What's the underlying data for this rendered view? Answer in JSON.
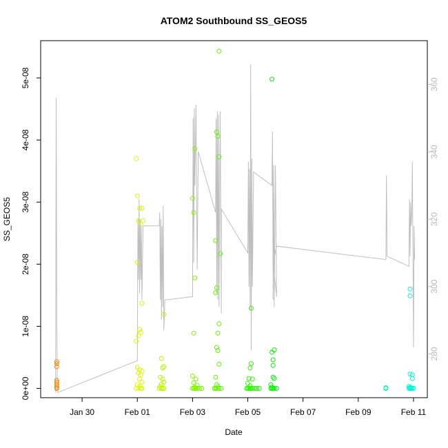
{
  "chart_data": {
    "type": "scatter",
    "title": "ATOM2 Southbound SS_GEOS5",
    "xlabel": "Date",
    "ylabel": "SS_GEOS5",
    "x_unit": "day",
    "xlim": [
      "2016-01-28T12:00",
      "2016-02-11T12:00"
    ],
    "ylim": [
      -1.5e-09,
      5.6e-08
    ],
    "y_ticks": [
      {
        "value": 0,
        "label": "0e+00"
      },
      {
        "value": 1e-08,
        "label": "1e-08"
      },
      {
        "value": 2e-08,
        "label": "2e-08"
      },
      {
        "value": 3e-08,
        "label": "3e-08"
      },
      {
        "value": 4e-08,
        "label": "4e-08"
      },
      {
        "value": 5e-08,
        "label": "5e-08"
      }
    ],
    "x_ticks": [
      {
        "value": "2016-01-30",
        "label": "Jan 30"
      },
      {
        "value": "2016-02-01",
        "label": "Feb 01"
      },
      {
        "value": "2016-02-03",
        "label": "Feb 03"
      },
      {
        "value": "2016-02-05",
        "label": "Feb 05"
      },
      {
        "value": "2016-02-07",
        "label": "Feb 07"
      },
      {
        "value": "2016-02-09",
        "label": "Feb 09"
      },
      {
        "value": "2016-02-11",
        "label": "Feb 11"
      }
    ],
    "y2lim": [
      267,
      373
    ],
    "y2_ticks": [
      {
        "value": 280,
        "label": "280"
      },
      {
        "value": 300,
        "label": "300"
      },
      {
        "value": 320,
        "label": "320"
      },
      {
        "value": 340,
        "label": "340"
      },
      {
        "value": 360,
        "label": "360"
      }
    ],
    "grid": false,
    "line_color": "#bebebe",
    "series": [
      {
        "marker": "circle-open",
        "points": [
          [
            "2016-01-29T02:00",
            4.3e-09
          ],
          [
            "2016-01-29T02:00",
            4e-09
          ],
          [
            "2016-01-29T02:00",
            3.5e-09
          ],
          [
            "2016-01-29T02:00",
            1.3e-09
          ],
          [
            "2016-01-29T02:00",
            1e-09
          ],
          [
            "2016-01-29T02:00",
            7e-10
          ],
          [
            "2016-01-29T02:00",
            4e-10
          ],
          [
            "2016-01-29T02:00",
            1e-10
          ],
          [
            "2016-01-29T02:00",
            0.0
          ]
        ]
      },
      {
        "marker": "circle-open",
        "points": [
          [
            "2016-01-31T23:00",
            3.7e-08
          ],
          [
            "2016-02-01T00:00",
            3.1e-08
          ],
          [
            "2016-02-01T02:00",
            2.9e-08
          ],
          [
            "2016-02-01T04:00",
            2.9e-08
          ],
          [
            "2016-02-01T01:00",
            2.7e-08
          ],
          [
            "2016-02-01T03:00",
            2.65e-08
          ],
          [
            "2016-02-01T05:00",
            2.7e-08
          ],
          [
            "2016-02-01T00:00",
            2.03e-08
          ],
          [
            "2016-02-01T04:00",
            1.37e-08
          ],
          [
            "2016-02-01T02:00",
            9.5e-09
          ],
          [
            "2016-02-01T03:00",
            9e-09
          ],
          [
            "2016-02-01T01:00",
            8.5e-09
          ],
          [
            "2016-01-31T23:00",
            7.6e-09
          ],
          [
            "2016-02-01T00:00",
            3.4e-09
          ],
          [
            "2016-02-01T02:00",
            3e-09
          ],
          [
            "2016-02-01T04:00",
            2.8e-09
          ],
          [
            "2016-02-01T01:00",
            2.5e-09
          ],
          [
            "2016-02-01T03:00",
            2.2e-09
          ],
          [
            "2016-02-01T02:00",
            1.5e-09
          ],
          [
            "2016-02-01T04:00",
            1e-09
          ],
          [
            "2016-02-01T00:00",
            6e-10
          ],
          [
            "2016-02-01T02:00",
            3e-10
          ],
          [
            "2016-02-01T04:00",
            0.0
          ],
          [
            "2016-02-01T01:00",
            0.0
          ],
          [
            "2016-02-01T03:00",
            0.0
          ],
          [
            "2016-01-31T23:00",
            0.0
          ]
        ]
      },
      {
        "marker": "circle-open",
        "points": [
          [
            "2016-02-01T21:00",
            4.8e-09
          ],
          [
            "2016-02-01T23:00",
            1.19e-08
          ],
          [
            "2016-02-01T23:00",
            3.5e-09
          ],
          [
            "2016-02-01T22:00",
            3.3e-09
          ],
          [
            "2016-02-01T20:00",
            1.8e-09
          ],
          [
            "2016-02-01T22:00",
            1.5e-09
          ],
          [
            "2016-02-01T23:00",
            1e-09
          ],
          [
            "2016-02-01T21:00",
            7e-10
          ],
          [
            "2016-02-01T20:00",
            3e-10
          ],
          [
            "2016-02-01T22:00",
            0.0
          ],
          [
            "2016-02-01T23:00",
            0.0
          ],
          [
            "2016-02-01T21:00",
            0.0
          ],
          [
            "2016-02-01T19:00",
            0.0
          ]
        ]
      },
      {
        "marker": "circle-open",
        "points": [
          [
            "2016-02-03T00:00",
            3.06e-08
          ],
          [
            "2016-02-03T02:00",
            3.86e-08
          ],
          [
            "2016-02-03T01:00",
            2.83e-08
          ],
          [
            "2016-02-03T02:00",
            1.78e-08
          ],
          [
            "2016-02-03T01:00",
            8.9e-09
          ],
          [
            "2016-02-03T00:00",
            2e-09
          ],
          [
            "2016-02-03T03:00",
            1.5e-09
          ],
          [
            "2016-02-03T01:00",
            9e-10
          ],
          [
            "2016-02-03T04:00",
            5e-10
          ],
          [
            "2016-02-03T02:00",
            2e-10
          ],
          [
            "2016-02-03T00:00",
            0.0
          ],
          [
            "2016-02-03T01:00",
            0.0
          ],
          [
            "2016-02-03T02:00",
            0.0
          ],
          [
            "2016-02-03T03:00",
            0.0
          ],
          [
            "2016-02-03T04:00",
            0.0
          ],
          [
            "2016-02-03T06:00",
            0.0
          ],
          [
            "2016-02-03T08:00",
            0.0
          ]
        ]
      },
      {
        "marker": "circle-open",
        "points": [
          [
            "2016-02-03T21:00",
            4.13e-08
          ],
          [
            "2016-02-03T22:00",
            4.06e-08
          ],
          [
            "2016-02-03T23:00",
            3.73e-08
          ],
          [
            "2016-02-03T20:00",
            2.38e-08
          ],
          [
            "2016-02-04T00:00",
            2.17e-08
          ],
          [
            "2016-02-03T21:00",
            1.62e-08
          ],
          [
            "2016-02-03T20:00",
            1.54e-08
          ],
          [
            "2016-02-03T23:00",
            1.04e-08
          ],
          [
            "2016-02-03T22:00",
            8.9e-09
          ],
          [
            "2016-02-03T21:00",
            6.6e-09
          ],
          [
            "2016-02-03T22:00",
            6.1e-09
          ],
          [
            "2016-02-03T23:00",
            3.9e-09
          ],
          [
            "2016-02-03T20:00",
            1.8e-09
          ],
          [
            "2016-02-03T21:00",
            6e-10
          ],
          [
            "2016-02-03T22:00",
            3e-10
          ],
          [
            "2016-02-03T23:00",
            0.0
          ],
          [
            "2016-02-04T01:00",
            0.0
          ],
          [
            "2016-02-03T19:00",
            0.0
          ],
          [
            "2016-02-03T20:00",
            0.0
          ],
          [
            "2016-02-03T21:00",
            0.0
          ]
        ]
      },
      {
        "marker": "circle-open",
        "points": [
          [
            "2016-02-03T23:00",
            5.43e-08
          ]
        ]
      },
      {
        "marker": "circle-open",
        "points": [
          [
            "2016-02-05T03:00",
            1.29e-08
          ],
          [
            "2016-02-05T03:00",
            4e-09
          ],
          [
            "2016-02-05T02:00",
            3.3e-09
          ],
          [
            "2016-02-05T01:00",
            1.6e-09
          ],
          [
            "2016-02-05T04:00",
            1.5e-09
          ],
          [
            "2016-02-05T00:00",
            8e-10
          ],
          [
            "2016-02-05T02:00",
            4e-10
          ],
          [
            "2016-02-05T00:00",
            0.0
          ],
          [
            "2016-02-05T01:00",
            0.0
          ],
          [
            "2016-02-05T02:00",
            0.0
          ],
          [
            "2016-02-05T03:00",
            0.0
          ],
          [
            "2016-02-05T04:00",
            0.0
          ],
          [
            "2016-02-05T06:00",
            0.0
          ],
          [
            "2016-02-05T08:00",
            0.0
          ],
          [
            "2016-02-05T10:00",
            0.0
          ],
          [
            "2016-02-04T23:00",
            0.0
          ]
        ]
      },
      {
        "marker": "circle-open",
        "points": [
          [
            "2016-02-05T21:00",
            4.98e-08
          ],
          [
            "2016-02-05T23:00",
            6.2e-09
          ],
          [
            "2016-02-05T21:00",
            5.8e-09
          ],
          [
            "2016-02-05T22:00",
            4.6e-09
          ],
          [
            "2016-02-05T22:00",
            3.7e-09
          ],
          [
            "2016-02-05T22:00",
            1.8e-09
          ],
          [
            "2016-02-05T23:00",
            1.6e-09
          ],
          [
            "2016-02-05T20:00",
            6e-10
          ],
          [
            "2016-02-05T21:00",
            2e-10
          ],
          [
            "2016-02-05T20:00",
            0.0
          ],
          [
            "2016-02-05T21:00",
            0.0
          ],
          [
            "2016-02-05T22:00",
            0.0
          ],
          [
            "2016-02-05T23:00",
            0.0
          ],
          [
            "2016-02-06T01:00",
            0.0
          ]
        ]
      },
      {
        "marker": "circle-open",
        "points": [
          [
            "2016-02-10T00:00",
            0.0
          ],
          [
            "2016-02-10T00:00",
            1e-10
          ]
        ]
      },
      {
        "marker": "circle-open",
        "points": [
          [
            "2016-02-10T21:00",
            1.6e-08
          ],
          [
            "2016-02-10T21:00",
            1.49e-08
          ],
          [
            "2016-02-10T21:00",
            2.3e-09
          ],
          [
            "2016-02-10T23:00",
            2.2e-09
          ],
          [
            "2016-02-10T23:00",
            1.6e-09
          ],
          [
            "2016-02-10T20:00",
            3e-10
          ],
          [
            "2016-02-10T21:00",
            2e-10
          ],
          [
            "2016-02-10T22:00",
            1e-10
          ],
          [
            "2016-02-10T22:00",
            0.0
          ],
          [
            "2016-02-10T23:00",
            0.0
          ],
          [
            "2016-02-11T00:00",
            0.0
          ],
          [
            "2016-02-10T20:00",
            0.0
          ],
          [
            "2016-02-10T21:00",
            0.0
          ]
        ]
      }
    ],
    "line_series": {
      "axis": "right",
      "points": [
        [
          "2016-01-29T01:00",
          268.5
        ],
        [
          "2016-01-29T01:30",
          356.0
        ],
        [
          "2016-01-29T02:00",
          290.0
        ],
        [
          "2016-01-29T02:30",
          268.5
        ],
        [
          "2016-02-01T00:00",
          278.0
        ],
        [
          "2016-02-01T00:30",
          320.0
        ],
        [
          "2016-02-01T01:00",
          302.0
        ],
        [
          "2016-02-01T01:30",
          326.0
        ],
        [
          "2016-02-01T02:00",
          298.0
        ],
        [
          "2016-02-01T02:30",
          320.0
        ],
        [
          "2016-02-01T03:00",
          302.0
        ],
        [
          "2016-02-01T03:30",
          318.0
        ],
        [
          "2016-02-01T04:00",
          296.0
        ],
        [
          "2016-02-01T05:00",
          318.0
        ],
        [
          "2016-02-01T19:00",
          318.0
        ],
        [
          "2016-02-01T19:30",
          322.0
        ],
        [
          "2016-02-01T20:00",
          296.0
        ],
        [
          "2016-02-01T20:30",
          320.0
        ],
        [
          "2016-02-01T21:00",
          290.0
        ],
        [
          "2016-02-01T21:30",
          318.0
        ],
        [
          "2016-02-01T22:00",
          294.0
        ],
        [
          "2016-02-01T22:30",
          324.0
        ],
        [
          "2016-02-01T23:00",
          287.0
        ],
        [
          "2016-02-02T00:00",
          296.0
        ],
        [
          "2016-02-03T00:00",
          297.0
        ],
        [
          "2016-02-03T00:30",
          350.0
        ],
        [
          "2016-02-03T01:00",
          307.0
        ],
        [
          "2016-02-03T01:30",
          353.0
        ],
        [
          "2016-02-03T02:00",
          330.0
        ],
        [
          "2016-02-03T03:00",
          354.0
        ],
        [
          "2016-02-03T04:00",
          305.0
        ],
        [
          "2016-02-03T05:00",
          340.0
        ],
        [
          "2016-02-03T05:00",
          340.0
        ],
        [
          "2016-02-03T20:00",
          322.0
        ],
        [
          "2016-02-03T20:30",
          350.0
        ],
        [
          "2016-02-03T21:00",
          298.0
        ],
        [
          "2016-02-03T21:30",
          352.0
        ],
        [
          "2016-02-03T22:00",
          296.0
        ],
        [
          "2016-02-03T22:30",
          351.0
        ],
        [
          "2016-02-03T23:00",
          294.0
        ],
        [
          "2016-02-04T00:00",
          352.0
        ],
        [
          "2016-02-04T01:00",
          292.0
        ],
        [
          "2016-02-04T01:00",
          323.0
        ],
        [
          "2016-02-05T00:00",
          310.0
        ],
        [
          "2016-02-05T00:30",
          337.0
        ],
        [
          "2016-02-05T01:00",
          300.0
        ],
        [
          "2016-02-05T01:30",
          335.0
        ],
        [
          "2016-02-05T02:00",
          293.0
        ],
        [
          "2016-02-05T02:30",
          366.0
        ],
        [
          "2016-02-05T03:00",
          281.0
        ],
        [
          "2016-02-05T03:30",
          338.0
        ],
        [
          "2016-02-05T04:00",
          300.0
        ],
        [
          "2016-02-05T05:00",
          334.0
        ],
        [
          "2016-02-05T05:00",
          334.0
        ],
        [
          "2016-02-05T21:00",
          330.0
        ],
        [
          "2016-02-05T21:30",
          346.0
        ],
        [
          "2016-02-05T22:00",
          296.0
        ],
        [
          "2016-02-05T22:30",
          336.0
        ],
        [
          "2016-02-05T23:00",
          294.0
        ],
        [
          "2016-02-06T00:00",
          336.0
        ],
        [
          "2016-02-06T01:00",
          297.0
        ],
        [
          "2016-02-05T22:00",
          307.0
        ],
        [
          "2016-02-06T01:00",
          312.0
        ],
        [
          "2016-02-10T00:00",
          308.0
        ],
        [
          "2016-02-10T00:30",
          333.0
        ],
        [
          "2016-02-10T01:00",
          309.0
        ],
        [
          "2016-02-10T20:00",
          306.0
        ],
        [
          "2016-02-10T20:30",
          326.0
        ],
        [
          "2016-02-10T21:00",
          309.0
        ],
        [
          "2016-02-10T21:30",
          325.0
        ],
        [
          "2016-02-10T22:00",
          318.0
        ],
        [
          "2016-02-10T22:30",
          322.0
        ],
        [
          "2016-02-10T23:00",
          337.0
        ],
        [
          "2016-02-11T00:00",
          282.0
        ],
        [
          "2016-02-11T00:30",
          318.0
        ],
        [
          "2016-02-11T01:00",
          308.0
        ]
      ]
    }
  }
}
